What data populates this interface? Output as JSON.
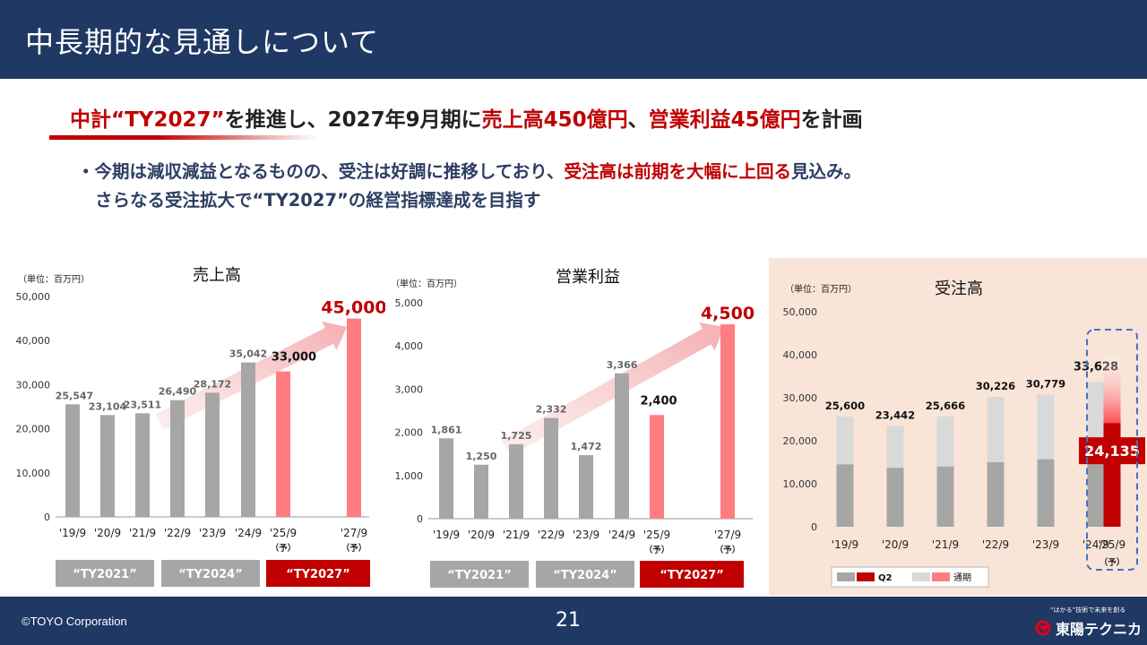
{
  "slide": {
    "title": "中長期的な見通しについて",
    "headline_parts": [
      "中計“TY2027”",
      "を推進し、2027年9月期に",
      "売上高450億円",
      "、",
      "営業利益45億円",
      "を計画"
    ],
    "bullet_line1_parts": [
      "・今期は減収減益となるものの、受注は好調に推移しており、",
      "受注高は前期を大幅に上回る",
      "見込み。"
    ],
    "bullet_line2": "さらなる受注拡大で“TY2027”の経営指標達成を目指す",
    "copyright": "©TOYO Corporation",
    "page_number": "21",
    "logo_tagline": "“はかる”技術で未来を創る",
    "logo_name": "東陽テクニカ"
  },
  "colors": {
    "header_bg": "#1f3864",
    "accent_red": "#c00000",
    "bar_gray": "#a6a6a6",
    "bar_light_gray": "#d9d9d9",
    "bar_forecast": "#ff7c80",
    "bar_dark_red": "#c00000",
    "order_panel_bg": "#f8e5d8",
    "plan_box_gray": "#a6a6a6"
  },
  "chart_data": [
    {
      "type": "bar",
      "title": "売上高",
      "unit_label": "（単位：百万円）",
      "categories": [
        "'19/9",
        "'20/9",
        "'21/9",
        "'22/9",
        "'23/9",
        "'24/9",
        "'25/9",
        "'27/9"
      ],
      "forecast_marks": [
        "",
        "",
        "",
        "",
        "",
        "",
        "（予）",
        "（予）"
      ],
      "values": [
        25547,
        23104,
        23511,
        26490,
        28172,
        35042,
        33000,
        45000
      ],
      "value_labels": [
        "25,547",
        "23,104",
        "23,511",
        "26,490",
        "28,172",
        "35,042",
        "33,000",
        "45,000"
      ],
      "forecast_index": [
        6,
        7
      ],
      "ylim": [
        0,
        50000
      ],
      "yticks": [
        0,
        10000,
        20000,
        30000,
        40000,
        50000
      ],
      "ytick_labels": [
        "0",
        "10,000",
        "20,000",
        "30,000",
        "40,000",
        "50,000"
      ],
      "plans": [
        "“TY2021”",
        "“TY2024”",
        "“TY2027”"
      ]
    },
    {
      "type": "bar",
      "title": "営業利益",
      "unit_label": "（単位：百万円）",
      "categories": [
        "'19/9",
        "'20/9",
        "'21/9",
        "'22/9",
        "'23/9",
        "'24/9",
        "'25/9",
        "'27/9"
      ],
      "forecast_marks": [
        "",
        "",
        "",
        "",
        "",
        "",
        "（予）",
        "（予）"
      ],
      "values": [
        1861,
        1250,
        1725,
        2332,
        1472,
        3366,
        2400,
        4500
      ],
      "value_labels": [
        "1,861",
        "1,250",
        "1,725",
        "2,332",
        "1,472",
        "3,366",
        "2,400",
        "4,500"
      ],
      "forecast_index": [
        6,
        7
      ],
      "ylim": [
        0,
        5000
      ],
      "yticks": [
        0,
        1000,
        2000,
        3000,
        4000,
        5000
      ],
      "ytick_labels": [
        "0",
        "1,000",
        "2,000",
        "3,000",
        "4,000",
        "5,000"
      ],
      "plans": [
        "“TY2021”",
        "“TY2024”",
        "“TY2027”"
      ]
    },
    {
      "type": "bar",
      "title": "受注高",
      "unit_label": "（単位：百万円）",
      "categories": [
        "'19/9",
        "'20/9",
        "'21/9",
        "'22/9",
        "'23/9",
        "'24/9",
        "'25/9"
      ],
      "forecast_marks": [
        "",
        "",
        "",
        "",
        "",
        "",
        "（予）"
      ],
      "series": [
        {
          "name": "Q2",
          "values": [
            14500,
            13700,
            14000,
            15000,
            15700,
            17600,
            24135
          ]
        },
        {
          "name": "通期",
          "values": [
            25600,
            23442,
            25666,
            30226,
            30779,
            33628,
            40000
          ]
        }
      ],
      "value_labels": [
        "25,600",
        "23,442",
        "25,666",
        "30,226",
        "30,779",
        "33,628",
        "24,135"
      ],
      "ylim": [
        0,
        50000
      ],
      "yticks": [
        0,
        10000,
        20000,
        30000,
        40000,
        50000
      ],
      "ytick_labels": [
        "0",
        "10,000",
        "20,000",
        "30,000",
        "40,000",
        "50,000"
      ],
      "legend": "bottom-left"
    }
  ]
}
